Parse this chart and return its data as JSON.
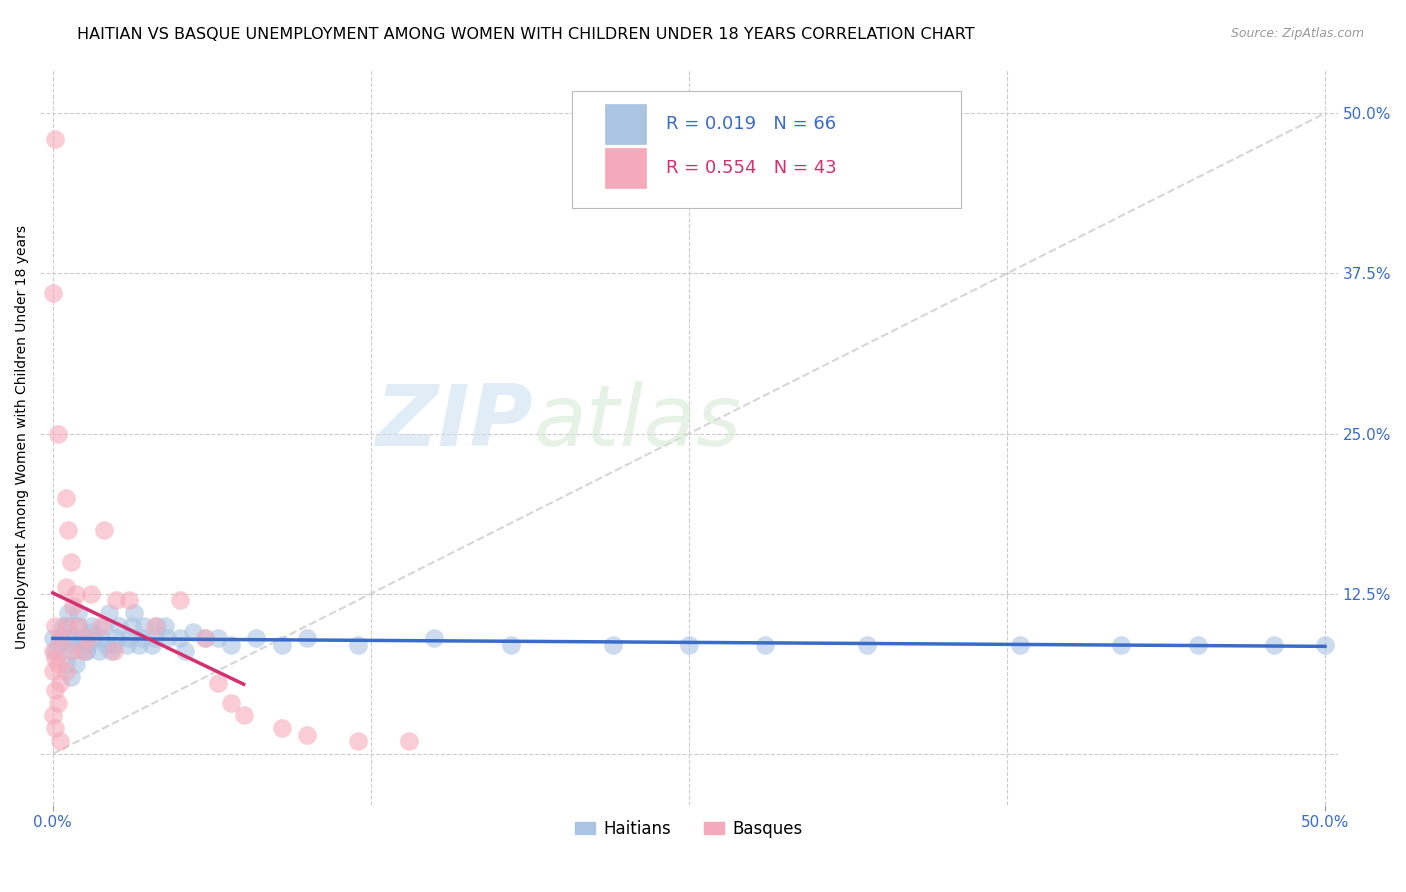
{
  "title": "HAITIAN VS BASQUE UNEMPLOYMENT AMONG WOMEN WITH CHILDREN UNDER 18 YEARS CORRELATION CHART",
  "source": "Source: ZipAtlas.com",
  "ylabel": "Unemployment Among Women with Children Under 18 years",
  "xlim": [
    -0.005,
    0.505
  ],
  "ylim": [
    -0.04,
    0.535
  ],
  "x_tick_vals": [
    0.0,
    0.5
  ],
  "x_tick_labels": [
    "0.0%",
    "50.0%"
  ],
  "y_tick_vals": [
    0.0,
    0.125,
    0.25,
    0.375,
    0.5
  ],
  "y_tick_labels_right": [
    "",
    "12.5%",
    "25.0%",
    "37.5%",
    "50.0%"
  ],
  "haitian_color": "#aac4e2",
  "basque_color": "#f5aabb",
  "haitian_line_color": "#3a6bc9",
  "basque_line_color": "#d43070",
  "diagonal_color": "#cccccc",
  "watermark_zip": "ZIP",
  "watermark_atlas": "atlas",
  "title_fontsize": 11.5,
  "source_fontsize": 9,
  "label_fontsize": 10,
  "tick_fontsize": 11,
  "legend_r1": "R = 0.019",
  "legend_n1": "N = 66",
  "legend_r2": "R = 0.554",
  "legend_n2": "N = 43",
  "haitian_x": [
    0.002,
    0.003,
    0.001,
    0.004,
    0.0,
    0.006,
    0.007,
    0.005,
    0.008,
    0.006,
    0.009,
    0.005,
    0.007,
    0.01,
    0.012,
    0.011,
    0.013,
    0.01,
    0.009,
    0.015,
    0.014,
    0.016,
    0.015,
    0.013,
    0.02,
    0.019,
    0.021,
    0.018,
    0.022,
    0.025,
    0.024,
    0.026,
    0.023,
    0.03,
    0.031,
    0.029,
    0.032,
    0.035,
    0.036,
    0.034,
    0.04,
    0.041,
    0.039,
    0.045,
    0.044,
    0.05,
    0.052,
    0.055,
    0.06,
    0.065,
    0.07,
    0.08,
    0.09,
    0.1,
    0.12,
    0.15,
    0.18,
    0.22,
    0.25,
    0.28,
    0.32,
    0.38,
    0.42,
    0.45,
    0.48,
    0.5
  ],
  "haitian_y": [
    0.085,
    0.09,
    0.08,
    0.1,
    0.09,
    0.09,
    0.08,
    0.1,
    0.085,
    0.11,
    0.09,
    0.07,
    0.06,
    0.1,
    0.085,
    0.09,
    0.08,
    0.11,
    0.07,
    0.095,
    0.085,
    0.09,
    0.1,
    0.08,
    0.1,
    0.09,
    0.085,
    0.08,
    0.11,
    0.09,
    0.085,
    0.1,
    0.08,
    0.09,
    0.1,
    0.085,
    0.11,
    0.09,
    0.1,
    0.085,
    0.09,
    0.1,
    0.085,
    0.09,
    0.1,
    0.09,
    0.08,
    0.095,
    0.09,
    0.09,
    0.085,
    0.09,
    0.085,
    0.09,
    0.085,
    0.09,
    0.085,
    0.085,
    0.085,
    0.085,
    0.085,
    0.085,
    0.085,
    0.085,
    0.085,
    0.085
  ],
  "basque_x": [
    0.001,
    0.0,
    0.002,
    0.001,
    0.003,
    0.0,
    0.001,
    0.002,
    0.0,
    0.003,
    0.001,
    0.002,
    0.0,
    0.001,
    0.003,
    0.005,
    0.006,
    0.007,
    0.005,
    0.008,
    0.006,
    0.007,
    0.005,
    0.009,
    0.01,
    0.012,
    0.015,
    0.014,
    0.02,
    0.019,
    0.025,
    0.024,
    0.03,
    0.04,
    0.05,
    0.06,
    0.065,
    0.07,
    0.075,
    0.09,
    0.1,
    0.12,
    0.14
  ],
  "basque_y": [
    0.48,
    0.36,
    0.25,
    0.1,
    0.09,
    0.08,
    0.075,
    0.07,
    0.065,
    0.055,
    0.05,
    0.04,
    0.03,
    0.02,
    0.01,
    0.2,
    0.175,
    0.15,
    0.13,
    0.115,
    0.1,
    0.08,
    0.065,
    0.125,
    0.1,
    0.08,
    0.125,
    0.09,
    0.175,
    0.1,
    0.12,
    0.08,
    0.12,
    0.1,
    0.12,
    0.09,
    0.055,
    0.04,
    0.03,
    0.02,
    0.015,
    0.01,
    0.01
  ]
}
